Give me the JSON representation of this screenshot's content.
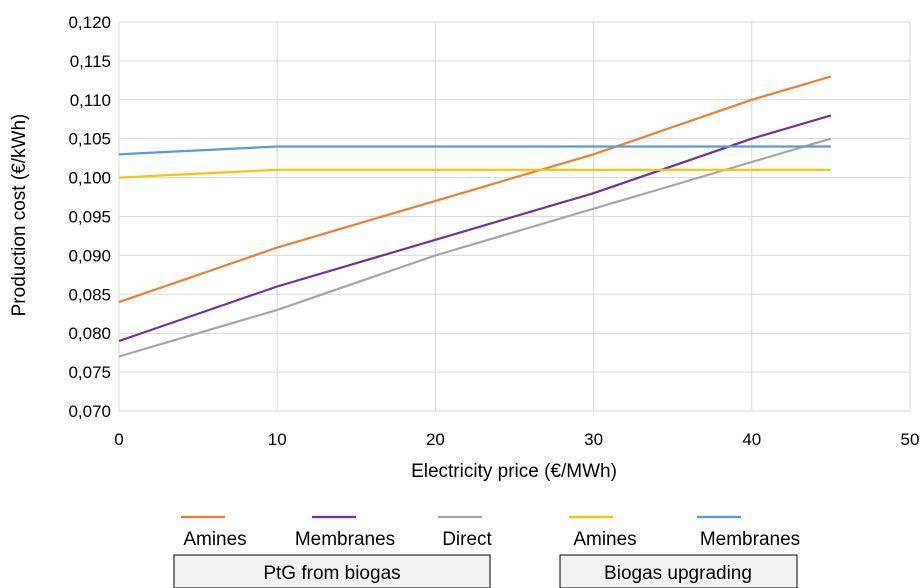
{
  "chart_data": {
    "type": "line",
    "xlabel": "Electricity price (€/MWh)",
    "ylabel": "Production cost (€/kWh)",
    "xlim": [
      0,
      50
    ],
    "ylim": [
      0.07,
      0.12
    ],
    "x_ticks": [
      "0",
      "10",
      "20",
      "30",
      "40",
      "50"
    ],
    "y_ticks": [
      "0,070",
      "0,075",
      "0,080",
      "0,085",
      "0,090",
      "0,095",
      "0,100",
      "0,105",
      "0,110",
      "0,115",
      "0,120"
    ],
    "grid": true,
    "legend_position": "bottom",
    "series": [
      {
        "name": "Amines",
        "group": "PtG from biogas",
        "color": "#ED7D31",
        "x": [
          0,
          10,
          20,
          30,
          40,
          45
        ],
        "y": [
          0.084,
          0.091,
          0.097,
          0.103,
          0.11,
          0.113
        ]
      },
      {
        "name": "Membranes",
        "group": "PtG from biogas",
        "color": "#7030A0",
        "x": [
          0,
          10,
          20,
          30,
          40,
          45
        ],
        "y": [
          0.079,
          0.086,
          0.092,
          0.098,
          0.105,
          0.108
        ]
      },
      {
        "name": "Direct",
        "group": "PtG from biogas",
        "color": "#A5A5A5",
        "x": [
          0,
          10,
          20,
          30,
          40,
          45
        ],
        "y": [
          0.077,
          0.083,
          0.09,
          0.096,
          0.102,
          0.105
        ]
      },
      {
        "name": "Amines",
        "group": "Biogas upgrading",
        "color": "#FFC000",
        "x": [
          0,
          10,
          20,
          30,
          40,
          45
        ],
        "y": [
          0.1,
          0.101,
          0.101,
          0.101,
          0.101,
          0.101
        ]
      },
      {
        "name": "Membranes",
        "group": "Biogas upgrading",
        "color": "#5B9BD5",
        "x": [
          0,
          10,
          20,
          30,
          40,
          45
        ],
        "y": [
          0.103,
          0.104,
          0.104,
          0.104,
          0.104,
          0.104
        ]
      }
    ],
    "legend_groups": [
      "PtG from biogas",
      "Biogas upgrading"
    ]
  }
}
